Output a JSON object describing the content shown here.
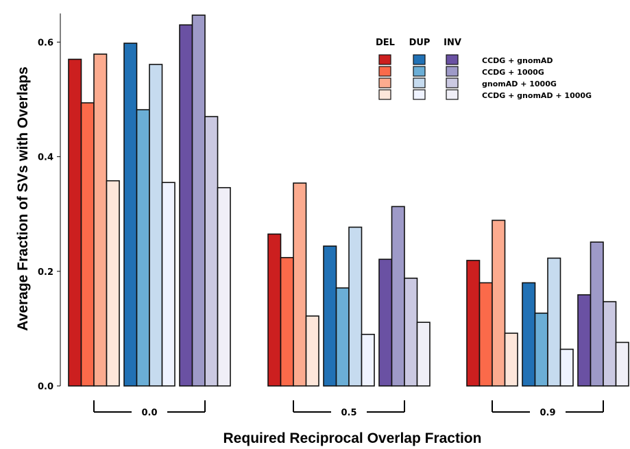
{
  "chart_data": {
    "type": "bar",
    "xlabel": "Required Reciprocal Overlap Fraction",
    "ylabel": "Average Fraction of SVs with Overlaps",
    "ylim": [
      0,
      0.65
    ],
    "yticks": [
      0.0,
      0.2,
      0.4,
      0.6
    ],
    "ytick_labels": [
      "0.0",
      "0.2",
      "0.4",
      "0.6"
    ],
    "grid": false,
    "legend_position": "top-right",
    "groups": [
      "0.0",
      "0.5",
      "0.9"
    ],
    "types": [
      "DEL",
      "DUP",
      "INV"
    ],
    "combinations": [
      "CCDG + gnomAD",
      "CCDG + 1000G",
      "gnomAD + 1000G",
      "CCDG + gnomAD + 1000G"
    ],
    "colors": {
      "DEL": [
        "#cc1f1f",
        "#fb6a4a",
        "#fcab8f",
        "#fde6da"
      ],
      "DUP": [
        "#2171b5",
        "#6baed6",
        "#c6dbef",
        "#eff3ff"
      ],
      "INV": [
        "#6a51a3",
        "#9e9ac8",
        "#cbc9e2",
        "#f0eff7"
      ]
    },
    "values": {
      "0.0": {
        "DEL": [
          0.57,
          0.494,
          0.579,
          0.358
        ],
        "DUP": [
          0.598,
          0.482,
          0.561,
          0.355
        ],
        "INV": [
          0.63,
          0.647,
          0.47,
          0.346
        ]
      },
      "0.5": {
        "DEL": [
          0.265,
          0.224,
          0.354,
          0.122
        ],
        "DUP": [
          0.244,
          0.171,
          0.277,
          0.09
        ],
        "INV": [
          0.221,
          0.313,
          0.188,
          0.111
        ]
      },
      "0.9": {
        "DEL": [
          0.219,
          0.18,
          0.289,
          0.092
        ],
        "DUP": [
          0.18,
          0.127,
          0.223,
          0.064
        ],
        "INV": [
          0.159,
          0.251,
          0.147,
          0.076
        ]
      }
    }
  }
}
